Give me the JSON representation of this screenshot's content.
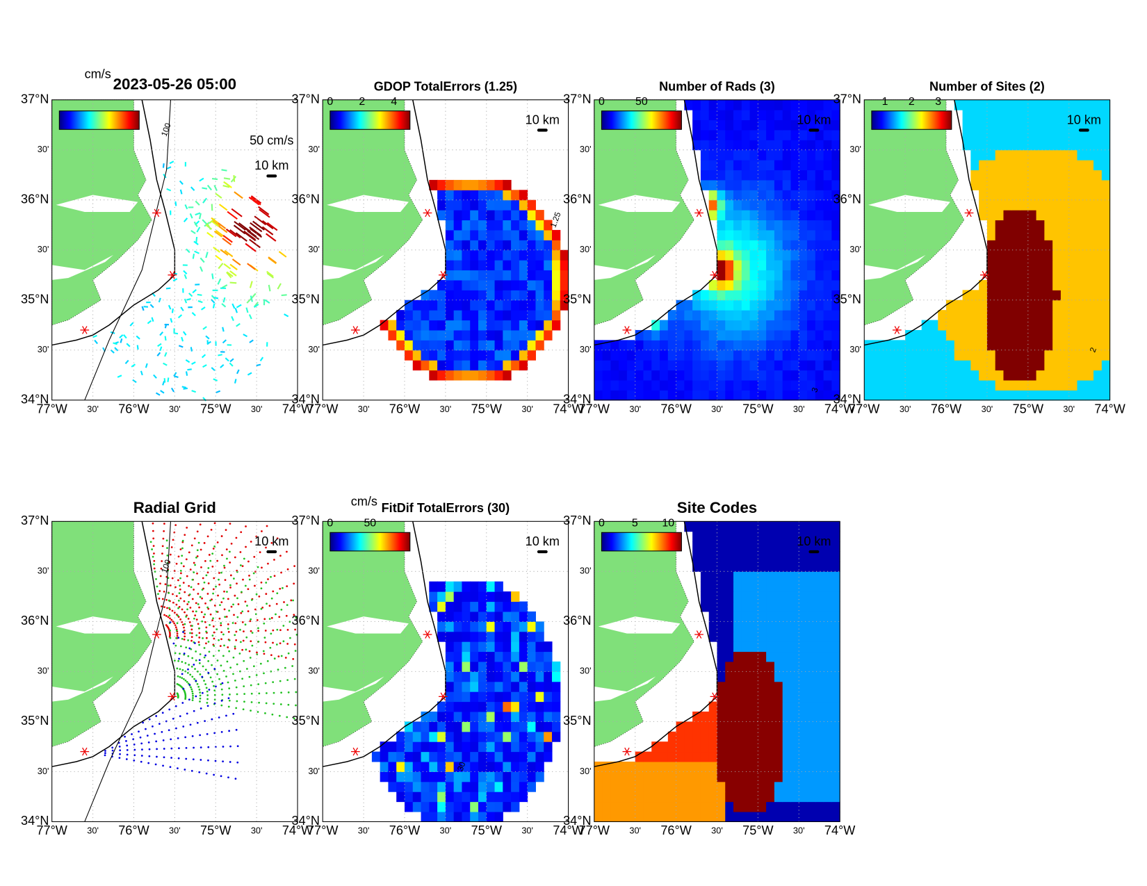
{
  "lat_labels": [
    "37°N",
    "30'",
    "36°N",
    "30'",
    "35°N",
    "30'",
    "34°N"
  ],
  "lon_labels": [
    "77°W",
    "30'",
    "76°W",
    "30'",
    "75°W",
    "30'",
    "74°W"
  ],
  "scale_label": "10 km",
  "panels": [
    {
      "title": "2023-05-26 05:00",
      "colorbar_unit": "cm/s",
      "vector_scale": "50 cm/s",
      "contour_label": "100"
    },
    {
      "title": "GDOP TotalErrors (1.25)",
      "colorbar_ticks": [
        0,
        2,
        4
      ],
      "contour_label": "1.25"
    },
    {
      "title": "Number of Rads (3)",
      "colorbar_ticks": [
        0,
        50
      ],
      "contour_label": "3"
    },
    {
      "title": "Number of Sites (2)",
      "colorbar_ticks": [
        1,
        2,
        3
      ],
      "contour_label": "2"
    },
    {
      "title": "Radial Grid",
      "contour_label": "100"
    },
    {
      "title": "FitDif TotalErrors (30)",
      "colorbar_unit": "cm/s",
      "colorbar_ticks": [
        0,
        50
      ],
      "contour_label": "30"
    },
    {
      "title": "Site Codes",
      "colorbar_ticks": [
        0,
        5,
        10
      ]
    }
  ]
}
